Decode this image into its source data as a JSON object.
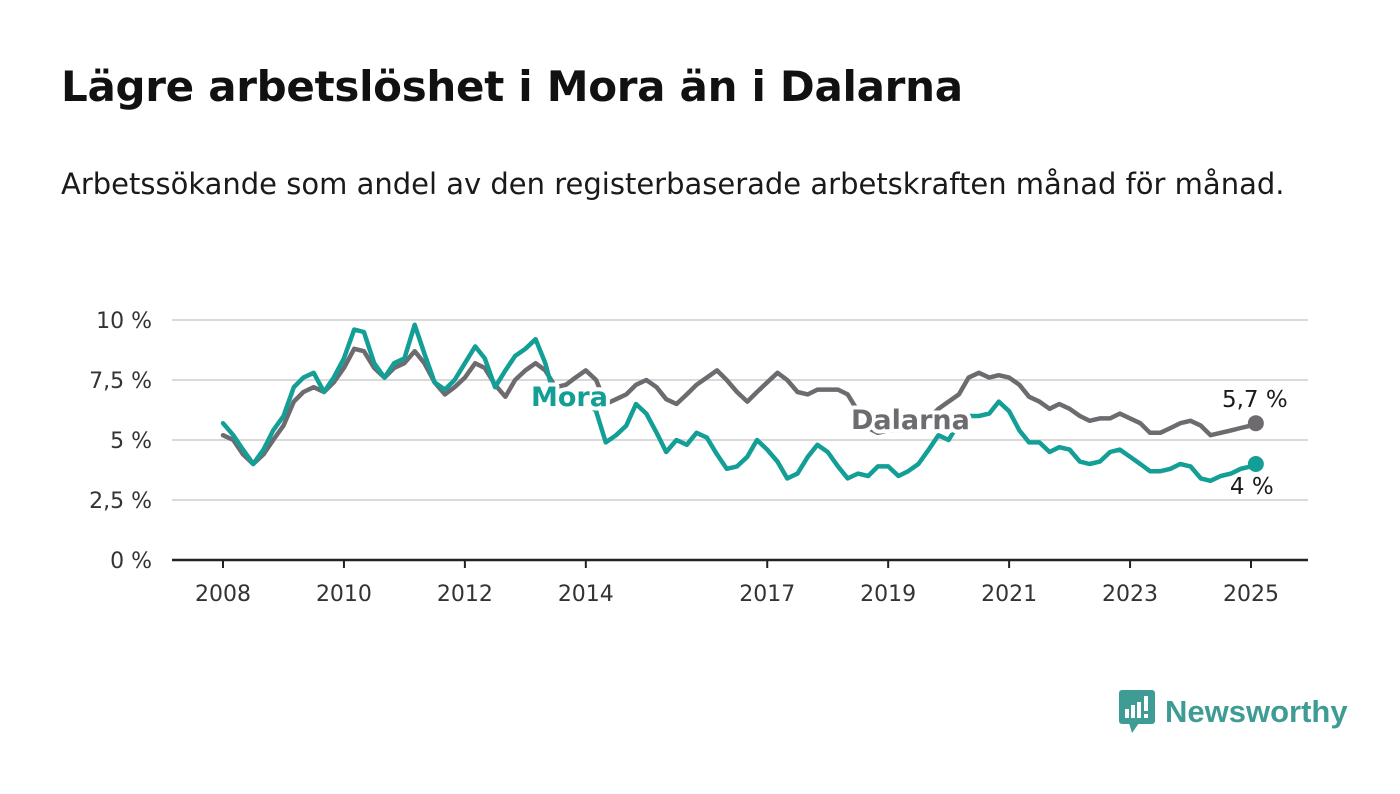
{
  "title": "Lägre arbetslöshet i Mora än i Dalarna",
  "subtitle": "Arbetssökande som andel av den registerbaserade arbetskraften månad för månad.",
  "logo": {
    "text": "Newsworthy",
    "icon": "bar-chart-speech-bubble-icon"
  },
  "colors": {
    "mora": "#139e96",
    "dalarna": "#6e6b70",
    "grid": "#d9d9d9",
    "axis": "#222222"
  },
  "chart_data": {
    "type": "line",
    "title": "Lägre arbetslöshet i Mora än i Dalarna",
    "subtitle": "Arbetssökande som andel av den registerbaserade arbetskraften månad för månad.",
    "xlabel": "",
    "ylabel": "",
    "xlim": [
      2008,
      2025.2
    ],
    "ylim": [
      0,
      10
    ],
    "x_ticks": [
      2008,
      2010,
      2012,
      2014,
      2017,
      2019,
      2021,
      2023,
      2025
    ],
    "x_tick_labels": [
      "2008",
      "2010",
      "2012",
      "2014",
      "2017",
      "2019",
      "2021",
      "2023",
      "2025"
    ],
    "y_ticks": [
      0,
      2.5,
      5,
      7.5,
      10
    ],
    "y_tick_labels": [
      "0 %",
      "2,5 %",
      "5 %",
      "7,5 %",
      "10 %"
    ],
    "grid": true,
    "legend": "inline labels",
    "series": [
      {
        "name": "Dalarna",
        "end_label": "5,7 %",
        "points": [
          [
            2008.0,
            5.2
          ],
          [
            2008.17,
            5.0
          ],
          [
            2008.33,
            4.4
          ],
          [
            2008.5,
            4.0
          ],
          [
            2008.67,
            4.4
          ],
          [
            2008.83,
            5.0
          ],
          [
            2009.0,
            5.6
          ],
          [
            2009.17,
            6.6
          ],
          [
            2009.33,
            7.0
          ],
          [
            2009.5,
            7.2
          ],
          [
            2009.67,
            7.0
          ],
          [
            2009.83,
            7.4
          ],
          [
            2010.0,
            8.0
          ],
          [
            2010.17,
            8.8
          ],
          [
            2010.33,
            8.7
          ],
          [
            2010.5,
            8.0
          ],
          [
            2010.67,
            7.6
          ],
          [
            2010.83,
            8.0
          ],
          [
            2011.0,
            8.2
          ],
          [
            2011.17,
            8.7
          ],
          [
            2011.33,
            8.2
          ],
          [
            2011.5,
            7.4
          ],
          [
            2011.67,
            6.9
          ],
          [
            2011.83,
            7.2
          ],
          [
            2012.0,
            7.6
          ],
          [
            2012.17,
            8.2
          ],
          [
            2012.33,
            8.0
          ],
          [
            2012.5,
            7.3
          ],
          [
            2012.67,
            6.8
          ],
          [
            2012.83,
            7.5
          ],
          [
            2013.0,
            7.9
          ],
          [
            2013.17,
            8.2
          ],
          [
            2013.33,
            7.9
          ],
          [
            2013.5,
            7.2
          ],
          [
            2013.67,
            7.3
          ],
          [
            2013.83,
            7.6
          ],
          [
            2014.0,
            7.9
          ],
          [
            2014.17,
            7.5
          ],
          [
            2014.33,
            6.5
          ],
          [
            2014.5,
            6.7
          ],
          [
            2014.67,
            6.9
          ],
          [
            2014.83,
            7.3
          ],
          [
            2015.0,
            7.5
          ],
          [
            2015.17,
            7.2
          ],
          [
            2015.33,
            6.7
          ],
          [
            2015.5,
            6.5
          ],
          [
            2015.67,
            6.9
          ],
          [
            2015.83,
            7.3
          ],
          [
            2016.0,
            7.6
          ],
          [
            2016.17,
            7.9
          ],
          [
            2016.33,
            7.5
          ],
          [
            2016.5,
            7.0
          ],
          [
            2016.67,
            6.6
          ],
          [
            2016.83,
            7.0
          ],
          [
            2017.0,
            7.4
          ],
          [
            2017.17,
            7.8
          ],
          [
            2017.33,
            7.5
          ],
          [
            2017.5,
            7.0
          ],
          [
            2017.67,
            6.9
          ],
          [
            2017.83,
            7.1
          ],
          [
            2018.0,
            7.1
          ],
          [
            2018.17,
            7.1
          ],
          [
            2018.33,
            6.9
          ],
          [
            2018.5,
            6.2
          ],
          [
            2018.67,
            5.5
          ],
          [
            2018.83,
            5.3
          ],
          [
            2019.0,
            5.4
          ],
          [
            2019.17,
            5.4
          ],
          [
            2019.33,
            5.5
          ],
          [
            2019.5,
            5.5
          ],
          [
            2019.67,
            5.9
          ],
          [
            2019.83,
            6.3
          ],
          [
            2020.0,
            6.6
          ],
          [
            2020.17,
            6.9
          ],
          [
            2020.33,
            7.6
          ],
          [
            2020.5,
            7.8
          ],
          [
            2020.67,
            7.6
          ],
          [
            2020.83,
            7.7
          ],
          [
            2021.0,
            7.6
          ],
          [
            2021.17,
            7.3
          ],
          [
            2021.33,
            6.8
          ],
          [
            2021.5,
            6.6
          ],
          [
            2021.67,
            6.3
          ],
          [
            2021.83,
            6.5
          ],
          [
            2022.0,
            6.3
          ],
          [
            2022.17,
            6.0
          ],
          [
            2022.33,
            5.8
          ],
          [
            2022.5,
            5.9
          ],
          [
            2022.67,
            5.9
          ],
          [
            2022.83,
            6.1
          ],
          [
            2023.0,
            5.9
          ],
          [
            2023.17,
            5.7
          ],
          [
            2023.33,
            5.3
          ],
          [
            2023.5,
            5.3
          ],
          [
            2023.67,
            5.5
          ],
          [
            2023.83,
            5.7
          ],
          [
            2024.0,
            5.8
          ],
          [
            2024.17,
            5.6
          ],
          [
            2024.33,
            5.2
          ],
          [
            2024.5,
            5.3
          ],
          [
            2024.67,
            5.4
          ],
          [
            2024.83,
            5.5
          ],
          [
            2025.0,
            5.6
          ],
          [
            2025.08,
            5.7
          ]
        ]
      },
      {
        "name": "Mora",
        "end_label": "4 %",
        "points": [
          [
            2008.0,
            5.7
          ],
          [
            2008.17,
            5.2
          ],
          [
            2008.33,
            4.6
          ],
          [
            2008.5,
            4.0
          ],
          [
            2008.67,
            4.6
          ],
          [
            2008.83,
            5.4
          ],
          [
            2009.0,
            6.0
          ],
          [
            2009.17,
            7.2
          ],
          [
            2009.33,
            7.6
          ],
          [
            2009.5,
            7.8
          ],
          [
            2009.67,
            7.0
          ],
          [
            2009.83,
            7.6
          ],
          [
            2010.0,
            8.4
          ],
          [
            2010.17,
            9.6
          ],
          [
            2010.33,
            9.5
          ],
          [
            2010.5,
            8.2
          ],
          [
            2010.67,
            7.6
          ],
          [
            2010.83,
            8.2
          ],
          [
            2011.0,
            8.4
          ],
          [
            2011.17,
            9.8
          ],
          [
            2011.33,
            8.6
          ],
          [
            2011.5,
            7.4
          ],
          [
            2011.67,
            7.1
          ],
          [
            2011.83,
            7.5
          ],
          [
            2012.0,
            8.2
          ],
          [
            2012.17,
            8.9
          ],
          [
            2012.33,
            8.4
          ],
          [
            2012.5,
            7.2
          ],
          [
            2012.67,
            7.9
          ],
          [
            2012.83,
            8.5
          ],
          [
            2013.0,
            8.8
          ],
          [
            2013.17,
            9.2
          ],
          [
            2013.33,
            8.2
          ],
          [
            2013.5,
            6.6
          ],
          [
            2013.67,
            6.5
          ],
          [
            2013.83,
            6.9
          ],
          [
            2014.0,
            6.7
          ],
          [
            2014.17,
            6.2
          ],
          [
            2014.33,
            4.9
          ],
          [
            2014.5,
            5.2
          ],
          [
            2014.67,
            5.6
          ],
          [
            2014.83,
            6.5
          ],
          [
            2015.0,
            6.1
          ],
          [
            2015.17,
            5.3
          ],
          [
            2015.33,
            4.5
          ],
          [
            2015.5,
            5.0
          ],
          [
            2015.67,
            4.8
          ],
          [
            2015.83,
            5.3
          ],
          [
            2016.0,
            5.1
          ],
          [
            2016.17,
            4.4
          ],
          [
            2016.33,
            3.8
          ],
          [
            2016.5,
            3.9
          ],
          [
            2016.67,
            4.3
          ],
          [
            2016.83,
            5.0
          ],
          [
            2017.0,
            4.6
          ],
          [
            2017.17,
            4.1
          ],
          [
            2017.33,
            3.4
          ],
          [
            2017.5,
            3.6
          ],
          [
            2017.67,
            4.3
          ],
          [
            2017.83,
            4.8
          ],
          [
            2018.0,
            4.5
          ],
          [
            2018.17,
            3.9
          ],
          [
            2018.33,
            3.4
          ],
          [
            2018.5,
            3.6
          ],
          [
            2018.67,
            3.5
          ],
          [
            2018.83,
            3.9
          ],
          [
            2019.0,
            3.9
          ],
          [
            2019.17,
            3.5
          ],
          [
            2019.33,
            3.7
          ],
          [
            2019.5,
            4.0
          ],
          [
            2019.67,
            4.6
          ],
          [
            2019.83,
            5.2
          ],
          [
            2020.0,
            5.0
          ],
          [
            2020.17,
            5.7
          ],
          [
            2020.33,
            6.0
          ],
          [
            2020.5,
            6.0
          ],
          [
            2020.67,
            6.1
          ],
          [
            2020.83,
            6.6
          ],
          [
            2021.0,
            6.2
          ],
          [
            2021.17,
            5.4
          ],
          [
            2021.33,
            4.9
          ],
          [
            2021.5,
            4.9
          ],
          [
            2021.67,
            4.5
          ],
          [
            2021.83,
            4.7
          ],
          [
            2022.0,
            4.6
          ],
          [
            2022.17,
            4.1
          ],
          [
            2022.33,
            4.0
          ],
          [
            2022.5,
            4.1
          ],
          [
            2022.67,
            4.5
          ],
          [
            2022.83,
            4.6
          ],
          [
            2023.0,
            4.3
          ],
          [
            2023.17,
            4.0
          ],
          [
            2023.33,
            3.7
          ],
          [
            2023.5,
            3.7
          ],
          [
            2023.67,
            3.8
          ],
          [
            2023.83,
            4.0
          ],
          [
            2024.0,
            3.9
          ],
          [
            2024.17,
            3.4
          ],
          [
            2024.33,
            3.3
          ],
          [
            2024.5,
            3.5
          ],
          [
            2024.67,
            3.6
          ],
          [
            2024.83,
            3.8
          ],
          [
            2025.0,
            3.9
          ],
          [
            2025.08,
            4.0
          ]
        ]
      }
    ]
  }
}
